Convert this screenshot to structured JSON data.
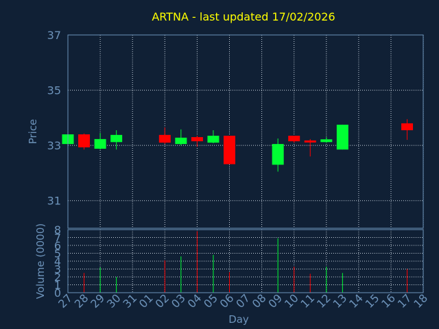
{
  "colors": {
    "background": "#102035",
    "plot_background": "#102035",
    "frame": "#6d93ba",
    "grid": "#c9d4df",
    "title": "#ffff00",
    "axis_text": "#6d93ba",
    "up": "#00ff33",
    "down": "#ff0000"
  },
  "chart_data": [
    {
      "type": "candlestick",
      "title": "ARTNA - last updated 17/02/2026",
      "ylabel": "Price",
      "xlabel": "",
      "ylim": [
        30,
        37
      ],
      "yticks": [
        "37",
        "35",
        "33",
        "31"
      ],
      "ytick_values": [
        37,
        35,
        33,
        31
      ],
      "grid": true,
      "x": [
        "27",
        "28",
        "29",
        "30",
        "31",
        "01",
        "02",
        "03",
        "04",
        "05",
        "06",
        "07",
        "08",
        "09",
        "10",
        "11",
        "12",
        "13",
        "14",
        "15",
        "16",
        "17",
        "18"
      ],
      "candles": [
        {
          "day": "27",
          "open": 33.05,
          "high": 33.4,
          "low": 33.02,
          "close": 33.4
        },
        {
          "day": "28",
          "open": 33.4,
          "high": 33.43,
          "low": 32.85,
          "close": 32.93
        },
        {
          "day": "29",
          "open": 32.88,
          "high": 33.45,
          "low": 32.85,
          "close": 33.23
        },
        {
          "day": "30",
          "open": 33.12,
          "high": 33.55,
          "low": 32.85,
          "close": 33.38
        },
        {
          "day": "02",
          "open": 33.38,
          "high": 33.65,
          "low": 33.05,
          "close": 33.1
        },
        {
          "day": "03",
          "open": 33.05,
          "high": 33.58,
          "low": 33.0,
          "close": 33.28
        },
        {
          "day": "04",
          "open": 33.3,
          "high": 33.35,
          "low": 32.95,
          "close": 33.15
        },
        {
          "day": "05",
          "open": 33.1,
          "high": 33.55,
          "low": 33.08,
          "close": 33.35
        },
        {
          "day": "06",
          "open": 33.35,
          "high": 33.35,
          "low": 32.32,
          "close": 32.32
        },
        {
          "day": "09",
          "open": 32.3,
          "high": 33.25,
          "low": 32.05,
          "close": 33.05
        },
        {
          "day": "10",
          "open": 33.35,
          "high": 33.35,
          "low": 33.1,
          "close": 33.15
        },
        {
          "day": "11",
          "open": 33.18,
          "high": 33.23,
          "low": 32.6,
          "close": 33.12
        },
        {
          "day": "12",
          "open": 33.12,
          "high": 33.3,
          "low": 33.1,
          "close": 33.22
        },
        {
          "day": "13",
          "open": 32.85,
          "high": 33.75,
          "low": 32.85,
          "close": 33.75
        },
        {
          "day": "17",
          "open": 33.8,
          "high": 33.95,
          "low": 33.2,
          "close": 33.55
        }
      ]
    },
    {
      "type": "bar",
      "title": "",
      "ylabel": "Volume (0000)",
      "xlabel": "Day",
      "ylim": [
        0,
        8
      ],
      "yticks": [
        "8",
        "7",
        "6",
        "5",
        "4",
        "3",
        "2",
        "1",
        "0"
      ],
      "ytick_values": [
        8,
        7,
        6,
        5,
        4,
        3,
        2,
        1,
        0
      ],
      "x": [
        "27",
        "28",
        "29",
        "30",
        "31",
        "01",
        "02",
        "03",
        "04",
        "05",
        "06",
        "07",
        "08",
        "09",
        "10",
        "11",
        "12",
        "13",
        "14",
        "15",
        "16",
        "17",
        "18"
      ],
      "bars": [
        {
          "day": "28",
          "value": 2.5,
          "direction": "down"
        },
        {
          "day": "29",
          "value": 3.2,
          "direction": "up"
        },
        {
          "day": "30",
          "value": 2.0,
          "direction": "up"
        },
        {
          "day": "02",
          "value": 4.1,
          "direction": "down"
        },
        {
          "day": "03",
          "value": 4.6,
          "direction": "up"
        },
        {
          "day": "04",
          "value": 7.8,
          "direction": "down"
        },
        {
          "day": "05",
          "value": 4.8,
          "direction": "up"
        },
        {
          "day": "06",
          "value": 2.6,
          "direction": "down"
        },
        {
          "day": "09",
          "value": 6.9,
          "direction": "up"
        },
        {
          "day": "10",
          "value": 3.3,
          "direction": "down"
        },
        {
          "day": "11",
          "value": 2.4,
          "direction": "down"
        },
        {
          "day": "12",
          "value": 3.3,
          "direction": "up"
        },
        {
          "day": "13",
          "value": 2.5,
          "direction": "up"
        },
        {
          "day": "17",
          "value": 3.0,
          "direction": "down"
        }
      ]
    }
  ]
}
